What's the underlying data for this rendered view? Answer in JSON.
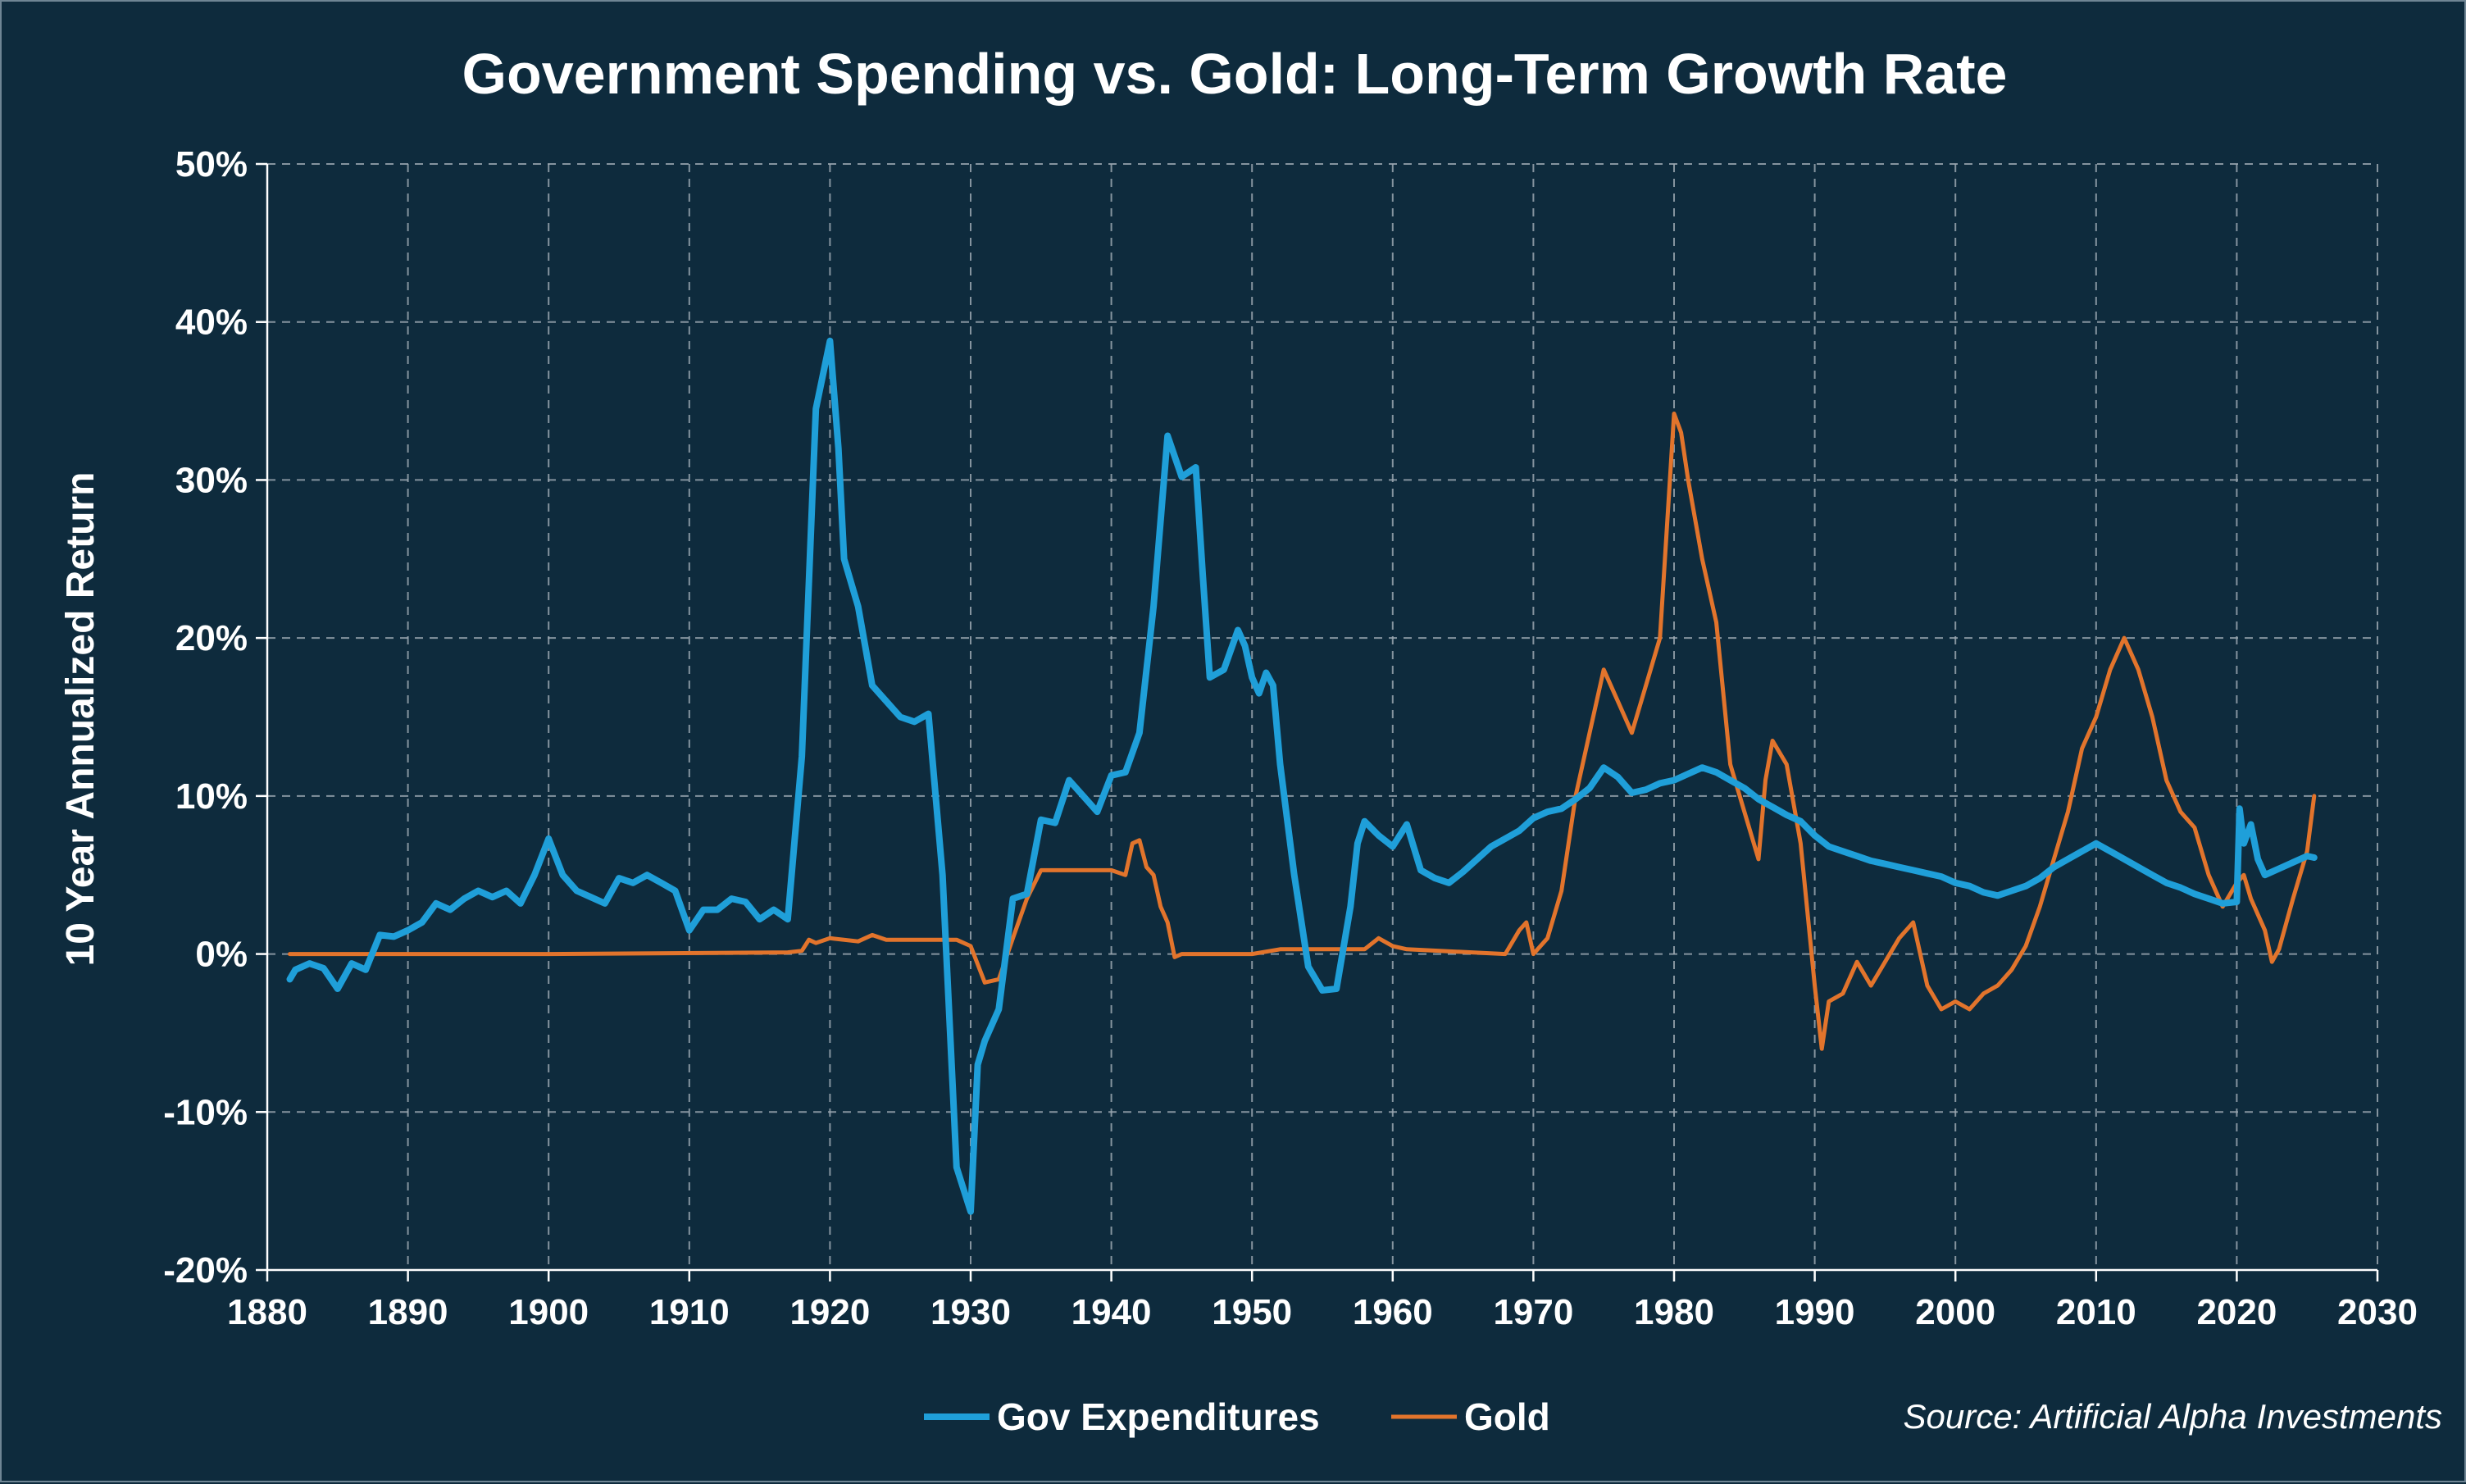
{
  "chart_data": {
    "type": "line",
    "title": "Government Spending vs. Gold: Long-Term Growth Rate",
    "ylabel": "10 Year Annualized Return",
    "xlabel": "",
    "xlim": [
      1880,
      2030
    ],
    "ylim": [
      -20,
      50
    ],
    "x_ticks": [
      "1880",
      "1890",
      "1900",
      "1910",
      "1920",
      "1930",
      "1940",
      "1950",
      "1960",
      "1970",
      "1980",
      "1990",
      "2000",
      "2010",
      "2020",
      "2030"
    ],
    "y_ticks": [
      "-20%",
      "-10%",
      "0%",
      "10%",
      "20%",
      "30%",
      "40%",
      "50%"
    ],
    "grid": true,
    "legend_position": "bottom-center",
    "source": "Source: Artificial Alpha Investments",
    "series": [
      {
        "name": "Gov Expenditures",
        "color": "#1f9fd9",
        "points": [
          [
            1881.6,
            -1.6
          ],
          [
            1882,
            -1
          ],
          [
            1883,
            -0.6
          ],
          [
            1884,
            -0.9
          ],
          [
            1885,
            -2.2
          ],
          [
            1886,
            -0.6
          ],
          [
            1887,
            -1
          ],
          [
            1888,
            1.2
          ],
          [
            1889,
            1.1
          ],
          [
            1890,
            1.5
          ],
          [
            1891,
            2
          ],
          [
            1892,
            3.2
          ],
          [
            1893,
            2.8
          ],
          [
            1894,
            3.5
          ],
          [
            1895,
            4
          ],
          [
            1896,
            3.6
          ],
          [
            1897,
            4
          ],
          [
            1898,
            3.2
          ],
          [
            1899,
            5
          ],
          [
            1900,
            7.3
          ],
          [
            1901,
            5
          ],
          [
            1902,
            4
          ],
          [
            1903,
            3.6
          ],
          [
            1904,
            3.2
          ],
          [
            1905,
            4.8
          ],
          [
            1906,
            4.5
          ],
          [
            1907,
            5
          ],
          [
            1908,
            4.5
          ],
          [
            1909,
            4
          ],
          [
            1910,
            1.5
          ],
          [
            1911,
            2.8
          ],
          [
            1912,
            2.8
          ],
          [
            1913,
            3.5
          ],
          [
            1914,
            3.3
          ],
          [
            1915,
            2.2
          ],
          [
            1916,
            2.8
          ],
          [
            1917,
            2.2
          ],
          [
            1918,
            12.5
          ],
          [
            1919,
            34.5
          ],
          [
            1920,
            38.8
          ],
          [
            1920.6,
            32
          ],
          [
            1921,
            25
          ],
          [
            1922,
            22
          ],
          [
            1923,
            17
          ],
          [
            1924,
            16
          ],
          [
            1925,
            15
          ],
          [
            1926,
            14.7
          ],
          [
            1927,
            15.2
          ],
          [
            1928,
            5
          ],
          [
            1929,
            -13.5
          ],
          [
            1930,
            -16.3
          ],
          [
            1930.5,
            -7
          ],
          [
            1931,
            -5.5
          ],
          [
            1932,
            -3.5
          ],
          [
            1933,
            3.5
          ],
          [
            1934,
            3.8
          ],
          [
            1935,
            8.5
          ],
          [
            1936,
            8.3
          ],
          [
            1937,
            11
          ],
          [
            1938,
            10
          ],
          [
            1939,
            9
          ],
          [
            1940,
            11.3
          ],
          [
            1941,
            11.5
          ],
          [
            1942,
            14
          ],
          [
            1943,
            22
          ],
          [
            1944,
            32.8
          ],
          [
            1945,
            30.2
          ],
          [
            1946,
            30.8
          ],
          [
            1946.5,
            24
          ],
          [
            1947,
            17.5
          ],
          [
            1948,
            18
          ],
          [
            1949,
            20.5
          ],
          [
            1949.5,
            19.5
          ],
          [
            1950,
            17.5
          ],
          [
            1950.5,
            16.5
          ],
          [
            1951,
            17.8
          ],
          [
            1951.5,
            17
          ],
          [
            1952,
            12
          ],
          [
            1953,
            5
          ],
          [
            1954,
            -0.8
          ],
          [
            1955,
            -2.3
          ],
          [
            1956,
            -2.2
          ],
          [
            1957,
            3
          ],
          [
            1957.5,
            7
          ],
          [
            1958,
            8.4
          ],
          [
            1959,
            7.5
          ],
          [
            1960,
            6.8
          ],
          [
            1961,
            8.2
          ],
          [
            1962,
            5.3
          ],
          [
            1963,
            4.8
          ],
          [
            1964,
            4.5
          ],
          [
            1965,
            5.2
          ],
          [
            1966,
            6
          ],
          [
            1967,
            6.8
          ],
          [
            1968,
            7.3
          ],
          [
            1969,
            7.8
          ],
          [
            1970,
            8.6
          ],
          [
            1971,
            9
          ],
          [
            1972,
            9.2
          ],
          [
            1973,
            9.8
          ],
          [
            1974,
            10.5
          ],
          [
            1975,
            11.8
          ],
          [
            1976,
            11.2
          ],
          [
            1977,
            10.2
          ],
          [
            1978,
            10.4
          ],
          [
            1979,
            10.8
          ],
          [
            1980,
            11
          ],
          [
            1981,
            11.4
          ],
          [
            1982,
            11.8
          ],
          [
            1983,
            11.5
          ],
          [
            1984,
            11
          ],
          [
            1985,
            10.5
          ],
          [
            1986,
            9.8
          ],
          [
            1987,
            9.3
          ],
          [
            1988,
            8.8
          ],
          [
            1989,
            8.4
          ],
          [
            1990,
            7.5
          ],
          [
            1991,
            6.8
          ],
          [
            1992,
            6.5
          ],
          [
            1993,
            6.2
          ],
          [
            1994,
            5.9
          ],
          [
            1995,
            5.7
          ],
          [
            1996,
            5.5
          ],
          [
            1997,
            5.3
          ],
          [
            1998,
            5.1
          ],
          [
            1999,
            4.9
          ],
          [
            2000,
            4.5
          ],
          [
            2001,
            4.3
          ],
          [
            2002,
            3.9
          ],
          [
            2003,
            3.7
          ],
          [
            2004,
            4
          ],
          [
            2005,
            4.3
          ],
          [
            2006,
            4.8
          ],
          [
            2007,
            5.5
          ],
          [
            2008,
            6
          ],
          [
            2009,
            6.5
          ],
          [
            2010,
            7
          ],
          [
            2011,
            6.5
          ],
          [
            2012,
            6
          ],
          [
            2013,
            5.5
          ],
          [
            2014,
            5
          ],
          [
            2015,
            4.5
          ],
          [
            2016,
            4.2
          ],
          [
            2017,
            3.8
          ],
          [
            2018,
            3.5
          ],
          [
            2019,
            3.2
          ],
          [
            2020,
            3.3
          ],
          [
            2020.2,
            9.2
          ],
          [
            2020.5,
            7
          ],
          [
            2021,
            8.2
          ],
          [
            2021.5,
            6
          ],
          [
            2022,
            5
          ],
          [
            2023,
            5.4
          ],
          [
            2024,
            5.8
          ],
          [
            2025,
            6.2
          ],
          [
            2025.5,
            6.1
          ]
        ]
      },
      {
        "name": "Gold",
        "color": "#e2742c",
        "points": [
          [
            1881.6,
            0
          ],
          [
            1900,
            0
          ],
          [
            1917,
            0.1
          ],
          [
            1918,
            0.2
          ],
          [
            1918.5,
            0.9
          ],
          [
            1919,
            0.7
          ],
          [
            1920,
            1
          ],
          [
            1922,
            0.8
          ],
          [
            1923,
            1.2
          ],
          [
            1924,
            0.9
          ],
          [
            1927,
            0.9
          ],
          [
            1929,
            0.9
          ],
          [
            1930,
            0.5
          ],
          [
            1931,
            -1.8
          ],
          [
            1932,
            -1.6
          ],
          [
            1933,
            1
          ],
          [
            1934,
            3.5
          ],
          [
            1935,
            5.3
          ],
          [
            1940,
            5.3
          ],
          [
            1941,
            5
          ],
          [
            1941.5,
            7
          ],
          [
            1942,
            7.2
          ],
          [
            1942.5,
            5.5
          ],
          [
            1943,
            5
          ],
          [
            1943.5,
            3
          ],
          [
            1944,
            2
          ],
          [
            1944.5,
            -0.2
          ],
          [
            1945,
            0
          ],
          [
            1950,
            0
          ],
          [
            1952,
            0.3
          ],
          [
            1958,
            0.3
          ],
          [
            1959,
            1
          ],
          [
            1960,
            0.5
          ],
          [
            1961,
            0.3
          ],
          [
            1968,
            0
          ],
          [
            1969,
            1.5
          ],
          [
            1969.5,
            2
          ],
          [
            1970,
            0
          ],
          [
            1971,
            1
          ],
          [
            1972,
            4
          ],
          [
            1973,
            10
          ],
          [
            1974,
            14
          ],
          [
            1975,
            18
          ],
          [
            1976,
            16
          ],
          [
            1977,
            14
          ],
          [
            1978,
            17
          ],
          [
            1979,
            20
          ],
          [
            1980,
            34.2
          ],
          [
            1980.5,
            33
          ],
          [
            1981,
            30
          ],
          [
            1982,
            25
          ],
          [
            1983,
            21
          ],
          [
            1984,
            12
          ],
          [
            1985,
            9
          ],
          [
            1986,
            6
          ],
          [
            1986.5,
            11
          ],
          [
            1987,
            13.5
          ],
          [
            1988,
            12
          ],
          [
            1989,
            7
          ],
          [
            1990,
            -2
          ],
          [
            1990.5,
            -6
          ],
          [
            1991,
            -3
          ],
          [
            1992,
            -2.5
          ],
          [
            1993,
            -0.5
          ],
          [
            1994,
            -2
          ],
          [
            1995,
            -0.5
          ],
          [
            1996,
            1
          ],
          [
            1997,
            2
          ],
          [
            1998,
            -2
          ],
          [
            1999,
            -3.5
          ],
          [
            2000,
            -3
          ],
          [
            2001,
            -3.5
          ],
          [
            2002,
            -2.5
          ],
          [
            2003,
            -2
          ],
          [
            2004,
            -1
          ],
          [
            2005,
            0.5
          ],
          [
            2006,
            3
          ],
          [
            2007,
            6
          ],
          [
            2008,
            9
          ],
          [
            2009,
            13
          ],
          [
            2010,
            15
          ],
          [
            2011,
            18
          ],
          [
            2012,
            20
          ],
          [
            2013,
            18
          ],
          [
            2014,
            15
          ],
          [
            2015,
            11
          ],
          [
            2016,
            9
          ],
          [
            2017,
            8
          ],
          [
            2018,
            5
          ],
          [
            2019,
            3
          ],
          [
            2020,
            4.5
          ],
          [
            2020.5,
            5
          ],
          [
            2021,
            3.5
          ],
          [
            2022,
            1.5
          ],
          [
            2022.5,
            -0.5
          ],
          [
            2023,
            0.3
          ],
          [
            2024,
            3.5
          ],
          [
            2025,
            6.5
          ],
          [
            2025.5,
            10
          ]
        ]
      }
    ]
  },
  "legend": {
    "gov_label": "Gov Expenditures",
    "gold_label": "Gold"
  }
}
